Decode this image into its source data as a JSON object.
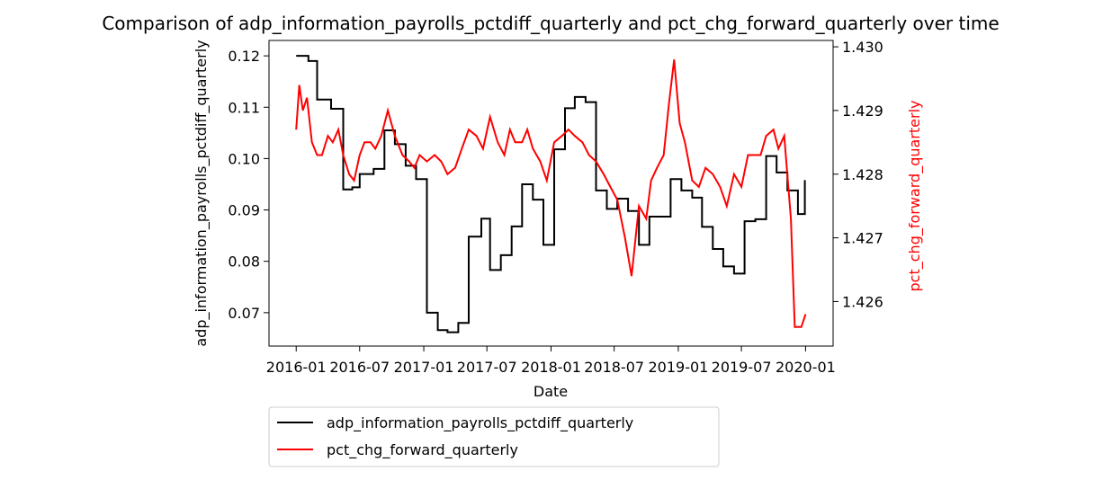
{
  "chart_data": {
    "type": "line",
    "title": "Comparison of adp_information_payrolls_pctdiff_quarterly and pct_chg_forward_quarterly over time",
    "xlabel": "Date",
    "ylabel_left": "adp_information_payrolls_pctdiff_quarterly",
    "ylabel_right": "pct_chg_forward_quarterly",
    "x_ticks": [
      "2016-01",
      "2016-07",
      "2017-01",
      "2017-07",
      "2018-01",
      "2018-07",
      "2019-01",
      "2019-07",
      "2020-01"
    ],
    "y_left_ticks": [
      "0.07",
      "0.08",
      "0.09",
      "0.10",
      "0.11",
      "0.12"
    ],
    "y_right_ticks": [
      "1.426",
      "1.427",
      "1.428",
      "1.429",
      "1.430"
    ],
    "xlim": [
      "2015-10-15",
      "2020-03-20"
    ],
    "ylim_left": [
      0.0635,
      0.123
    ],
    "ylim_right": [
      1.4253,
      1.4301
    ],
    "grid": false,
    "legend_position": "below-left",
    "colors": {
      "left": "#000000",
      "right": "#ff0000"
    },
    "series": [
      {
        "name": "adp_information_payrolls_pctdiff_quarterly",
        "axis": "left",
        "x": [
          "2016-01-01",
          "2016-01-20",
          "2016-02-05",
          "2016-03-01",
          "2016-04-10",
          "2016-05-15",
          "2016-06-10",
          "2016-07-01",
          "2016-08-10",
          "2016-09-10",
          "2016-10-10",
          "2016-11-10",
          "2016-12-10",
          "2017-01-10",
          "2017-02-10",
          "2017-03-10",
          "2017-04-10",
          "2017-05-10",
          "2017-06-15",
          "2017-07-10",
          "2017-08-10",
          "2017-09-10",
          "2017-10-10",
          "2017-11-10",
          "2017-12-10",
          "2018-01-10",
          "2018-02-10",
          "2018-03-10",
          "2018-04-10",
          "2018-05-10",
          "2018-06-10",
          "2018-07-10",
          "2018-08-10",
          "2018-09-10",
          "2018-10-10",
          "2018-11-10",
          "2018-12-10",
          "2019-01-10",
          "2019-02-10",
          "2019-03-10",
          "2019-04-10",
          "2019-05-10",
          "2019-06-10",
          "2019-07-10",
          "2019-08-10",
          "2019-09-10",
          "2019-10-10",
          "2019-11-10",
          "2019-12-10",
          "2019-12-30"
        ],
        "y": [
          0.12,
          0.12,
          0.119,
          0.1115,
          0.1097,
          0.094,
          0.0944,
          0.097,
          0.098,
          0.1055,
          0.1028,
          0.0986,
          0.096,
          0.07,
          0.0666,
          0.0662,
          0.068,
          0.0848,
          0.0883,
          0.0783,
          0.0812,
          0.0868,
          0.095,
          0.092,
          0.0832,
          0.1018,
          0.1098,
          0.112,
          0.111,
          0.0938,
          0.0902,
          0.0922,
          0.0898,
          0.0832,
          0.0887,
          0.0887,
          0.096,
          0.0938,
          0.0924,
          0.0867,
          0.0824,
          0.079,
          0.0776,
          0.0878,
          0.0882,
          0.1005,
          0.0973,
          0.0938,
          0.0892,
          0.0958
        ]
      },
      {
        "name": "pct_chg_forward_quarterly",
        "axis": "right",
        "x": [
          "2016-01-01",
          "2016-01-10",
          "2016-01-20",
          "2016-02-01",
          "2016-02-15",
          "2016-03-01",
          "2016-03-15",
          "2016-04-01",
          "2016-04-15",
          "2016-05-01",
          "2016-05-15",
          "2016-06-01",
          "2016-06-15",
          "2016-07-01",
          "2016-07-15",
          "2016-08-01",
          "2016-08-15",
          "2016-09-01",
          "2016-09-20",
          "2016-10-10",
          "2016-11-01",
          "2016-11-20",
          "2016-12-05",
          "2016-12-20",
          "2017-01-10",
          "2017-02-01",
          "2017-02-20",
          "2017-03-10",
          "2017-04-01",
          "2017-04-20",
          "2017-05-10",
          "2017-06-01",
          "2017-06-20",
          "2017-07-10",
          "2017-08-01",
          "2017-08-20",
          "2017-09-05",
          "2017-09-20",
          "2017-10-10",
          "2017-10-25",
          "2017-11-10",
          "2017-12-01",
          "2017-12-20",
          "2018-01-10",
          "2018-02-01",
          "2018-02-20",
          "2018-03-10",
          "2018-04-01",
          "2018-04-20",
          "2018-05-10",
          "2018-06-01",
          "2018-06-20",
          "2018-07-10",
          "2018-08-01",
          "2018-08-20",
          "2018-09-10",
          "2018-10-01",
          "2018-10-15",
          "2018-11-01",
          "2018-11-20",
          "2018-12-05",
          "2018-12-20",
          "2019-01-05",
          "2019-01-20",
          "2019-02-10",
          "2019-03-01",
          "2019-03-20",
          "2019-04-10",
          "2019-05-01",
          "2019-05-20",
          "2019-06-10",
          "2019-07-01",
          "2019-07-20",
          "2019-08-10",
          "2019-08-25",
          "2019-09-10",
          "2019-10-01",
          "2019-10-15",
          "2019-11-01",
          "2019-11-20",
          "2019-12-01",
          "2019-12-10",
          "2019-12-20",
          "2020-01-01"
        ],
        "y": [
          1.4287,
          1.4294,
          1.429,
          1.4292,
          1.4285,
          1.4283,
          1.4283,
          1.4286,
          1.4285,
          1.4287,
          1.4283,
          1.428,
          1.4279,
          1.4283,
          1.4285,
          1.4285,
          1.4284,
          1.4286,
          1.429,
          1.4286,
          1.4283,
          1.4282,
          1.4281,
          1.4283,
          1.4282,
          1.4283,
          1.4282,
          1.428,
          1.4281,
          1.4284,
          1.4287,
          1.4286,
          1.4284,
          1.4289,
          1.4285,
          1.4283,
          1.4287,
          1.4285,
          1.4285,
          1.4287,
          1.4284,
          1.4282,
          1.4279,
          1.4285,
          1.4286,
          1.4287,
          1.4286,
          1.4285,
          1.4283,
          1.4282,
          1.428,
          1.4278,
          1.4276,
          1.427,
          1.4264,
          1.4275,
          1.4273,
          1.4279,
          1.4281,
          1.4283,
          1.4291,
          1.4298,
          1.4288,
          1.4285,
          1.4279,
          1.4278,
          1.4281,
          1.428,
          1.4278,
          1.4275,
          1.428,
          1.4278,
          1.4283,
          1.4283,
          1.4283,
          1.4286,
          1.4287,
          1.4284,
          1.4286,
          1.4273,
          1.4256,
          1.4256,
          1.4256,
          1.4258
        ]
      }
    ]
  }
}
